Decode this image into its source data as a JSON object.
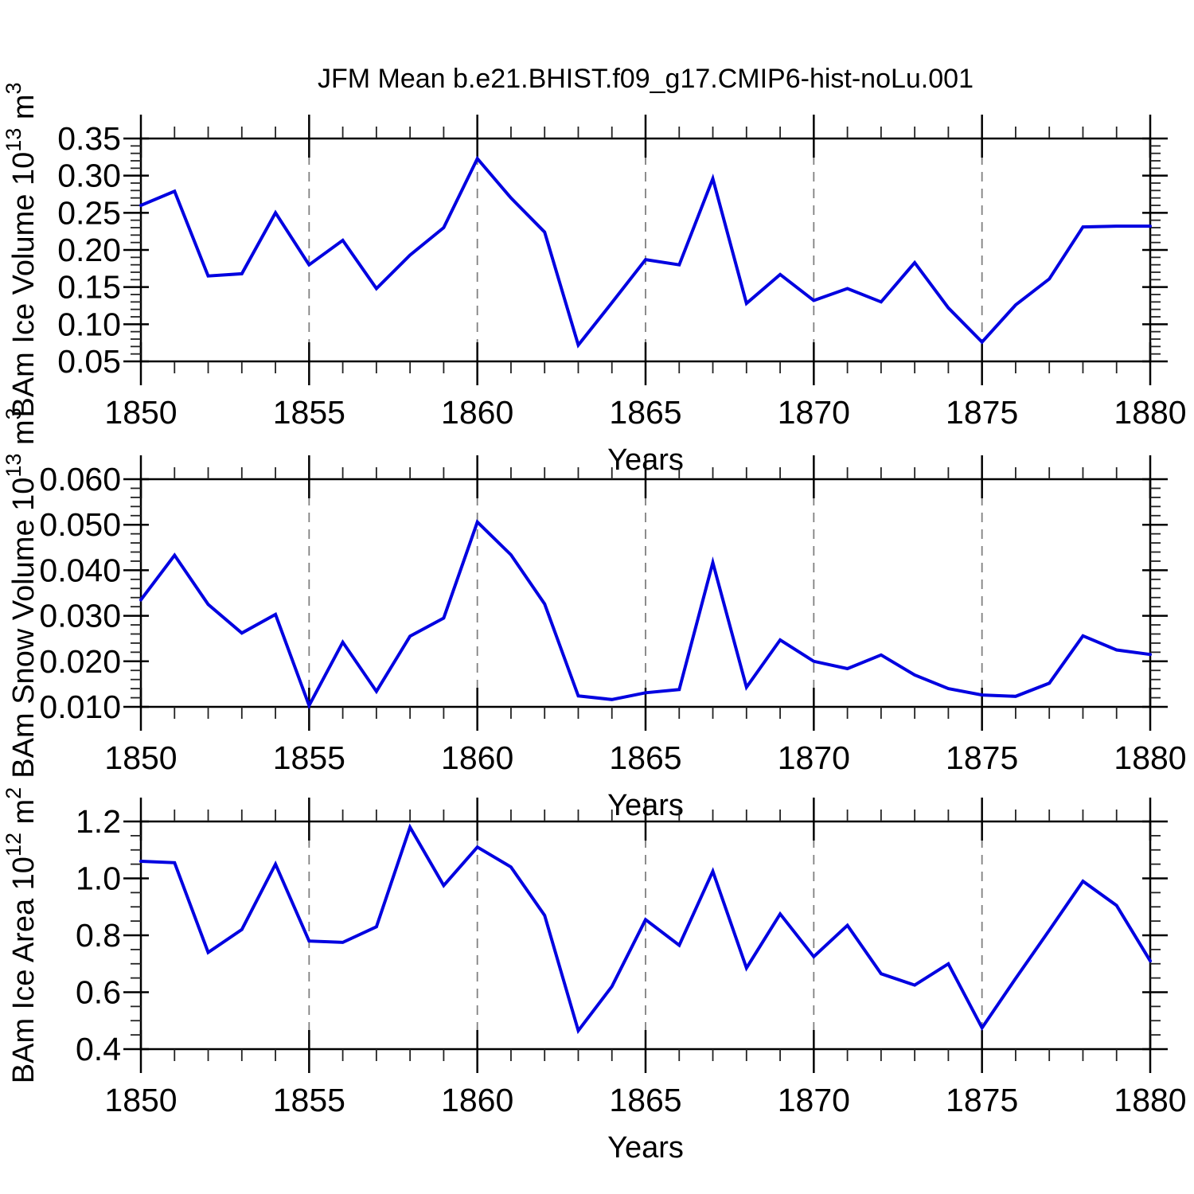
{
  "title": "JFM Mean b.e21.BHIST.f09_g17.CMIP6-hist-noLu.001",
  "x_axis_label": "Years",
  "chart_data": {
    "type": "line",
    "x_range": [
      1850,
      1880
    ],
    "x": [
      1850,
      1851,
      1852,
      1853,
      1854,
      1855,
      1856,
      1857,
      1858,
      1859,
      1860,
      1861,
      1862,
      1863,
      1864,
      1865,
      1866,
      1867,
      1868,
      1869,
      1870,
      1871,
      1872,
      1873,
      1874,
      1875,
      1876,
      1877,
      1878,
      1879,
      1880
    ],
    "x_major_ticks": [
      1850,
      1855,
      1860,
      1865,
      1870,
      1875,
      1880
    ],
    "x_tick_labels": [
      "1850",
      "1855",
      "1860",
      "1865",
      "1870",
      "1875",
      "1880"
    ],
    "x_gridline_years": [
      1855,
      1860,
      1865,
      1870,
      1875
    ],
    "x_minor_step": 1,
    "grid_on": true,
    "legend": "none",
    "line_color": "#0000e0",
    "gridline_color": "#808080",
    "panels": [
      {
        "name": "ice-volume",
        "ylabel_text": "BAm Ice Volume 10^13 m^3",
        "ylabel_segments": [
          {
            "t": "BAm Ice Volume 10"
          },
          {
            "t": "13",
            "sup": true
          },
          {
            "t": " m"
          },
          {
            "t": "3",
            "sup": true
          }
        ],
        "ylim": [
          0.05,
          0.35
        ],
        "ytick_values": [
          0.05,
          0.1,
          0.15,
          0.2,
          0.25,
          0.3,
          0.35
        ],
        "ytick_labels": [
          "0.05",
          "0.10",
          "0.15",
          "0.20",
          "0.25",
          "0.30",
          "0.35"
        ],
        "yminor_step": 0.01,
        "values": [
          0.26,
          0.279,
          0.165,
          0.168,
          0.25,
          0.18,
          0.213,
          0.148,
          0.193,
          0.23,
          0.323,
          0.27,
          0.224,
          0.072,
          0.129,
          0.187,
          0.18,
          0.296,
          0.128,
          0.167,
          0.132,
          0.148,
          0.13,
          0.183,
          0.122,
          0.076,
          0.126,
          0.161,
          0.231,
          0.232,
          0.232
        ]
      },
      {
        "name": "snow-volume",
        "ylabel_text": "BAm Snow Volume 10^13 m^3",
        "ylabel_segments": [
          {
            "t": "BAm Snow Volume 10"
          },
          {
            "t": "13",
            "sup": true
          },
          {
            "t": " m"
          },
          {
            "t": "3",
            "sup": true
          }
        ],
        "ylim": [
          0.01,
          0.06
        ],
        "ytick_values": [
          0.01,
          0.02,
          0.03,
          0.04,
          0.05,
          0.06
        ],
        "ytick_labels": [
          "0.010",
          "0.020",
          "0.030",
          "0.040",
          "0.050",
          "0.060"
        ],
        "yminor_step": 0.002,
        "values": [
          0.0335,
          0.0433,
          0.0325,
          0.0262,
          0.0303,
          0.0103,
          0.0242,
          0.0134,
          0.0255,
          0.0295,
          0.0506,
          0.0434,
          0.0326,
          0.0124,
          0.0116,
          0.0131,
          0.0138,
          0.0417,
          0.0143,
          0.0247,
          0.02,
          0.0184,
          0.0214,
          0.017,
          0.014,
          0.0126,
          0.0123,
          0.0152,
          0.0256,
          0.0225,
          0.0215
        ]
      },
      {
        "name": "ice-area",
        "ylabel_text": "BAm Ice Area 10^12 m^2",
        "ylabel_segments": [
          {
            "t": "BAm Ice Area 10"
          },
          {
            "t": "12",
            "sup": true
          },
          {
            "t": " m"
          },
          {
            "t": "2",
            "sup": true
          }
        ],
        "ylim": [
          0.4,
          1.2
        ],
        "ytick_values": [
          0.4,
          0.6,
          0.8,
          1.0,
          1.2
        ],
        "ytick_labels": [
          "0.4",
          "0.6",
          "0.8",
          "1.0",
          "1.2"
        ],
        "yminor_step": 0.05,
        "values": [
          1.06,
          1.055,
          0.74,
          0.82,
          1.05,
          0.78,
          0.775,
          0.83,
          1.18,
          0.975,
          1.11,
          1.04,
          0.87,
          0.465,
          0.62,
          0.855,
          0.765,
          1.025,
          0.685,
          0.875,
          0.725,
          0.835,
          0.665,
          0.625,
          0.7,
          0.475,
          0.648,
          0.818,
          0.99,
          0.905,
          0.71
        ]
      }
    ]
  }
}
